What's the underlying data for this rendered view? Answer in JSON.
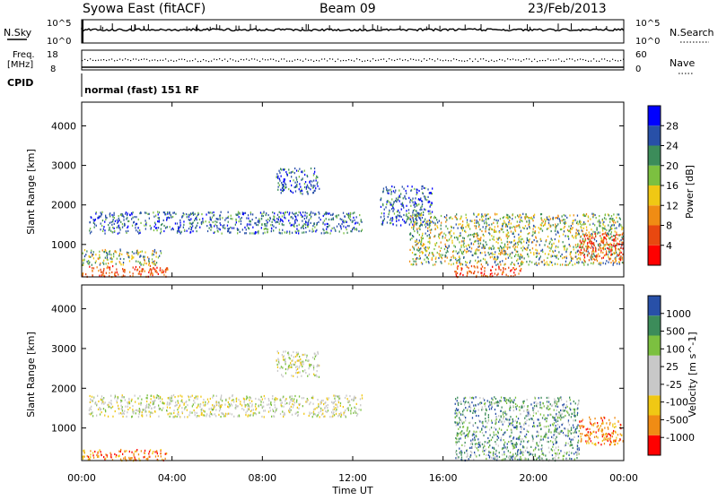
{
  "header": {
    "station": "Syowa East (fitACF)",
    "beam": "Beam 09",
    "date": "23/Feb/2013"
  },
  "top_panels": {
    "nsky": {
      "label": "N.Sky",
      "ticks": [
        "10^5",
        "10^0"
      ]
    },
    "nsearch": {
      "label": "N.Search",
      "ticks": [
        "10^5",
        "10^0"
      ]
    },
    "freq": {
      "label": "Freq.",
      "unit": "[MHz]",
      "ticks": [
        "18",
        "8"
      ]
    },
    "nave": {
      "label": "Nave",
      "ticks": [
        "60",
        "0"
      ]
    },
    "cpid": {
      "label": "CPID",
      "value": "normal (fast) 151 RF"
    }
  },
  "chart_data": [
    {
      "type": "heatmap",
      "title": "",
      "xlabel": "",
      "ylabel": "Slant Range [km]",
      "xlim": [
        "00:00",
        "00:00"
      ],
      "ylim": [
        180,
        4600
      ],
      "yticks": [
        "1000",
        "2000",
        "3000",
        "4000"
      ],
      "colorbar": {
        "label": "Power [dB]",
        "ticks": [
          "4",
          "8",
          "12",
          "16",
          "20",
          "24",
          "28"
        ],
        "colors": [
          "#0000ff",
          "#2850a8",
          "#3c8c5a",
          "#7cc040",
          "#f0c814",
          "#f08c14",
          "#e84810",
          "#ff0000"
        ]
      },
      "regions": [
        {
          "t0": 0.0,
          "t1": 3.8,
          "r0": 200,
          "r1": 480,
          "level": "high"
        },
        {
          "t0": 0.0,
          "t1": 3.5,
          "r0": 500,
          "r1": 900,
          "level": "mid"
        },
        {
          "t0": 0.3,
          "t1": 12.4,
          "r0": 1300,
          "r1": 1850,
          "level": "low"
        },
        {
          "t0": 8.6,
          "t1": 10.5,
          "r0": 2300,
          "r1": 2950,
          "level": "low"
        },
        {
          "t0": 13.2,
          "t1": 15.5,
          "r0": 1500,
          "r1": 2500,
          "level": "low"
        },
        {
          "t0": 16.5,
          "t1": 19.5,
          "r0": 200,
          "r1": 480,
          "level": "high"
        },
        {
          "t0": 14.5,
          "t1": 24.0,
          "r0": 500,
          "r1": 1800,
          "level": "mid"
        },
        {
          "t0": 22.0,
          "t1": 24.0,
          "r0": 600,
          "r1": 1300,
          "level": "high"
        }
      ]
    },
    {
      "type": "heatmap",
      "title": "",
      "xlabel": "Time UT",
      "ylabel": "Slant Range [km]",
      "xlim": [
        "00:00",
        "00:00"
      ],
      "ylim": [
        180,
        4600
      ],
      "xticks": [
        "00:00",
        "04:00",
        "08:00",
        "12:00",
        "16:00",
        "20:00",
        "00:00"
      ],
      "yticks": [
        "1000",
        "2000",
        "3000",
        "4000"
      ],
      "colorbar": {
        "label": "Velocity [m s^-1]",
        "ticks": [
          "1000",
          "500",
          "100",
          "25",
          "-25",
          "-100",
          "-500",
          "-1000"
        ],
        "colors": [
          "#2850a8",
          "#3c8c5a",
          "#7cc040",
          "#c8c8c8",
          "#c8c8c8",
          "#f0c814",
          "#f08c14",
          "#ff0000"
        ]
      },
      "regions": [
        {
          "t0": 0.0,
          "t1": 3.8,
          "r0": 200,
          "r1": 480,
          "level": "negative"
        },
        {
          "t0": 0.3,
          "t1": 12.4,
          "r0": 1300,
          "r1": 1850,
          "level": "near-zero"
        },
        {
          "t0": 8.6,
          "t1": 10.5,
          "r0": 2300,
          "r1": 2950,
          "level": "near-zero"
        },
        {
          "t0": 16.5,
          "t1": 22.0,
          "r0": 200,
          "r1": 1800,
          "level": "positive"
        },
        {
          "t0": 22.0,
          "t1": 24.0,
          "r0": 600,
          "r1": 1300,
          "level": "negative"
        }
      ]
    }
  ]
}
